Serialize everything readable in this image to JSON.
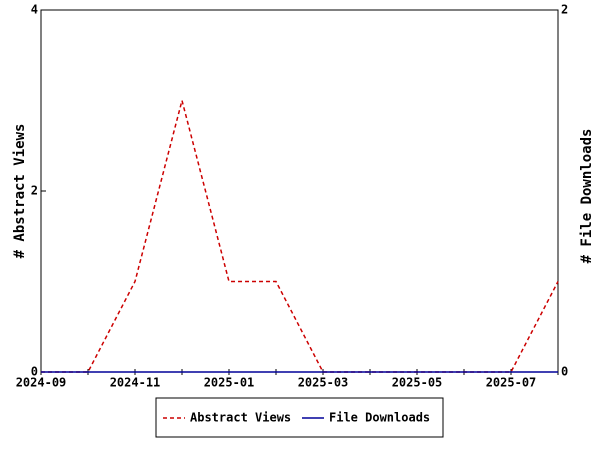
{
  "chart_data": {
    "type": "line",
    "categories": [
      "2024-09",
      null,
      "2024-11",
      null,
      "2025-01",
      null,
      "2025-03",
      null,
      "2025-05",
      null,
      "2025-07",
      null
    ],
    "series": [
      {
        "name": "Abstract Views",
        "color": "#cc0000",
        "linestyle": "dashed",
        "values": [
          0,
          0,
          1,
          3,
          1,
          1,
          0,
          0,
          0,
          0,
          0,
          1
        ]
      },
      {
        "name": "File Downloads",
        "color": "#000099",
        "linestyle": "solid",
        "axis": "y2",
        "values": [
          0,
          0,
          0,
          0,
          0,
          0,
          0,
          0,
          0,
          0,
          0,
          0
        ]
      }
    ],
    "ylabel": "# Abstract Views",
    "y2label": "# File Downloads",
    "ylim": [
      0,
      4
    ],
    "yticks": [
      0,
      2,
      4
    ],
    "y2lim": [
      0,
      2
    ],
    "y2ticks": [
      0,
      2
    ],
    "legend": "bottom"
  }
}
